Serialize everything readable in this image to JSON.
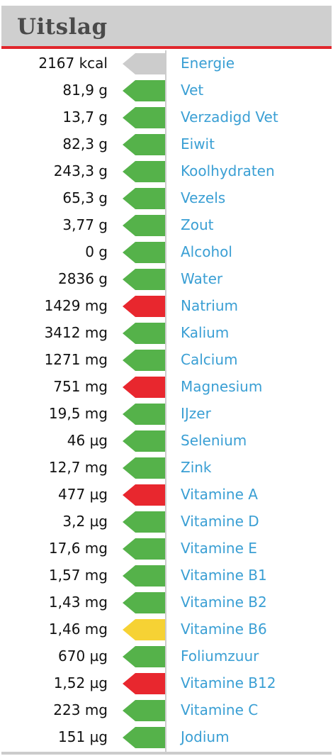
{
  "header": {
    "title": "Uitslag"
  },
  "colors": {
    "gray": "#cccccc",
    "green": "#55b24a",
    "red": "#e8272e",
    "yellow": "#f6d234",
    "link": "#3a9fd4",
    "accent": "#e1262c"
  },
  "rows": [
    {
      "value": "2167 kcal",
      "nutrient": "Energie",
      "status": "gray"
    },
    {
      "value": "81,9 g",
      "nutrient": "Vet",
      "status": "green"
    },
    {
      "value": "13,7 g",
      "nutrient": "Verzadigd Vet",
      "status": "green"
    },
    {
      "value": "82,3 g",
      "nutrient": "Eiwit",
      "status": "green"
    },
    {
      "value": "243,3 g",
      "nutrient": "Koolhydraten",
      "status": "green"
    },
    {
      "value": "65,3 g",
      "nutrient": "Vezels",
      "status": "green"
    },
    {
      "value": "3,77 g",
      "nutrient": "Zout",
      "status": "green"
    },
    {
      "value": "0 g",
      "nutrient": "Alcohol",
      "status": "green"
    },
    {
      "value": "2836 g",
      "nutrient": "Water",
      "status": "green"
    },
    {
      "value": "1429 mg",
      "nutrient": "Natrium",
      "status": "red"
    },
    {
      "value": "3412 mg",
      "nutrient": "Kalium",
      "status": "green"
    },
    {
      "value": "1271 mg",
      "nutrient": "Calcium",
      "status": "green"
    },
    {
      "value": "751 mg",
      "nutrient": "Magnesium",
      "status": "red"
    },
    {
      "value": "19,5 mg",
      "nutrient": "IJzer",
      "status": "green"
    },
    {
      "value": "46 µg",
      "nutrient": "Selenium",
      "status": "green"
    },
    {
      "value": "12,7 mg",
      "nutrient": "Zink",
      "status": "green"
    },
    {
      "value": "477 µg",
      "nutrient": "Vitamine A",
      "status": "red"
    },
    {
      "value": "3,2 µg",
      "nutrient": "Vitamine D",
      "status": "green"
    },
    {
      "value": "17,6 mg",
      "nutrient": "Vitamine E",
      "status": "green"
    },
    {
      "value": "1,57 mg",
      "nutrient": "Vitamine B1",
      "status": "green"
    },
    {
      "value": "1,43 mg",
      "nutrient": "Vitamine B2",
      "status": "green"
    },
    {
      "value": "1,46 mg",
      "nutrient": "Vitamine B6",
      "status": "yellow"
    },
    {
      "value": "670 µg",
      "nutrient": "Foliumzuur",
      "status": "green"
    },
    {
      "value": "1,52 µg",
      "nutrient": "Vitamine B12",
      "status": "red"
    },
    {
      "value": "223 mg",
      "nutrient": "Vitamine C",
      "status": "green"
    },
    {
      "value": "151 µg",
      "nutrient": "Jodium",
      "status": "green"
    }
  ]
}
